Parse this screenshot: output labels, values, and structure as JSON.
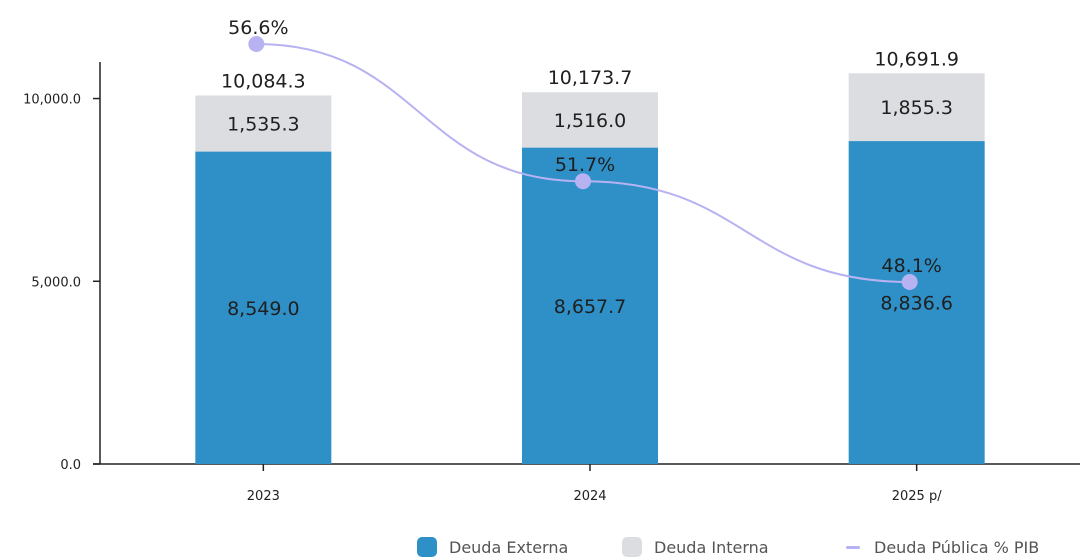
{
  "chart_data": {
    "type": "bar",
    "stacked": true,
    "categories": [
      "2023",
      "2024",
      "2025 p/"
    ],
    "series": [
      {
        "name": "Deuda Externa",
        "values": [
          8549.0,
          8657.7,
          8836.6
        ],
        "labels": [
          "8,549.0",
          "8,657.7",
          "8,836.6"
        ],
        "color": "#2e90c7"
      },
      {
        "name": "Deuda Interna",
        "values": [
          1535.3,
          1516.0,
          1855.3
        ],
        "labels": [
          "1,535.3",
          "1,516.0",
          "1,855.3"
        ],
        "color": "#dcdde1"
      }
    ],
    "totals": [
      10084.3,
      10173.7,
      10691.9
    ],
    "total_labels": [
      "10,084.3",
      "10,173.7",
      "10,691.9"
    ],
    "line_series": {
      "name": "Deuda Pública % PIB",
      "values": [
        56.6,
        51.7,
        48.1
      ],
      "labels": [
        "56.6%",
        "51.7%",
        "48.1%"
      ],
      "color": "#b7b3f2"
    },
    "y_ticks": [
      0,
      5000,
      10000
    ],
    "y_tick_labels": [
      "0.0",
      "5,000.0",
      "10,000.0"
    ],
    "ylim": [
      0,
      11000
    ],
    "grid": false,
    "legend_position": "bottom",
    "title": "",
    "xlabel": "",
    "ylabel": ""
  }
}
